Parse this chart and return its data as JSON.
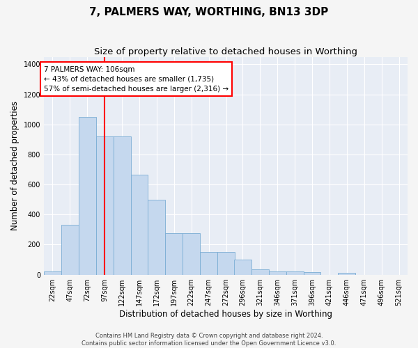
{
  "title": "7, PALMERS WAY, WORTHING, BN13 3DP",
  "subtitle": "Size of property relative to detached houses in Worthing",
  "xlabel": "Distribution of detached houses by size in Worthing",
  "ylabel": "Number of detached properties",
  "footer_line1": "Contains HM Land Registry data © Crown copyright and database right 2024.",
  "footer_line2": "Contains public sector information licensed under the Open Government Licence v3.0.",
  "annotation_line1": "7 PALMERS WAY: 106sqm",
  "annotation_line2": "← 43% of detached houses are smaller (1,735)",
  "annotation_line3": "57% of semi-detached houses are larger (2,316) →",
  "bar_color": "#c5d8ee",
  "bar_edge_color": "#7aadd4",
  "red_line_x": 109.5,
  "bin_starts": [
    22,
    47,
    72,
    97,
    122,
    147,
    172,
    197,
    222,
    247,
    272,
    296,
    321,
    346,
    371,
    396,
    421,
    446,
    471,
    496,
    521
  ],
  "bin_width": 25,
  "bar_heights": [
    22,
    330,
    1050,
    920,
    920,
    665,
    500,
    275,
    275,
    150,
    150,
    100,
    35,
    22,
    22,
    15,
    0,
    10,
    0,
    0,
    0
  ],
  "ylim": [
    0,
    1450
  ],
  "yticks": [
    0,
    200,
    400,
    600,
    800,
    1000,
    1200,
    1400
  ],
  "fig_bg": "#f5f5f5",
  "plot_bg": "#e8edf5",
  "grid_color": "#ffffff",
  "title_fontsize": 11,
  "subtitle_fontsize": 9.5,
  "axis_label_fontsize": 8.5,
  "tick_fontsize": 7,
  "annotation_fontsize": 7.5,
  "footer_fontsize": 6
}
